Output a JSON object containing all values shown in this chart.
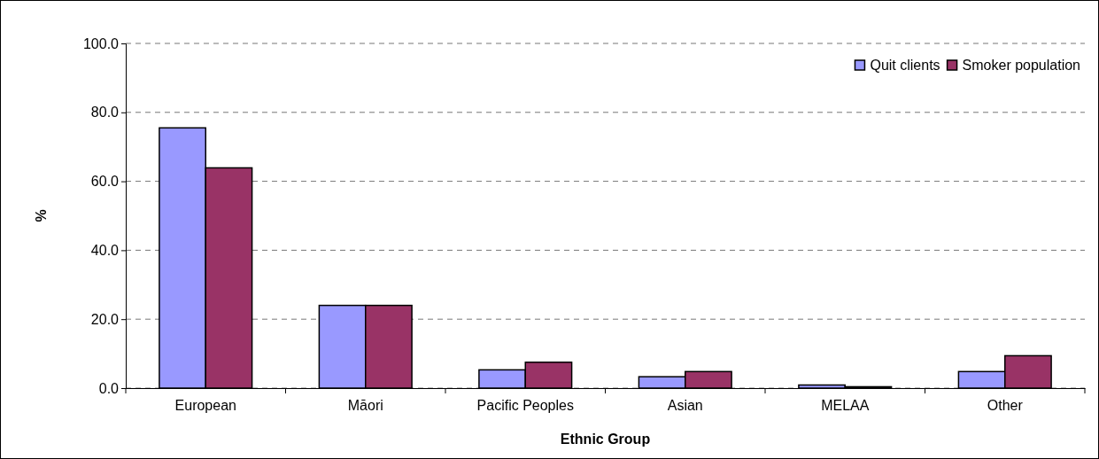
{
  "chart_data": {
    "type": "bar",
    "xlabel": "Ethnic Group",
    "ylabel": "%",
    "categories": [
      "European",
      "Māori",
      "Pacific Peoples",
      "Asian",
      "MELAA",
      "Other"
    ],
    "series": [
      {
        "name": "Quit clients",
        "color": "#9999ff",
        "values": [
          75.5,
          24.0,
          5.3,
          3.3,
          0.9,
          4.8
        ]
      },
      {
        "name": "Smoker population",
        "color": "#993366",
        "values": [
          63.9,
          24.0,
          7.5,
          4.8,
          0.4,
          9.4
        ]
      }
    ],
    "ylim": [
      0,
      100
    ],
    "yticks": [
      {
        "value": 0,
        "label": "0.0"
      },
      {
        "value": 20,
        "label": "20.0"
      },
      {
        "value": 40,
        "label": "40.0"
      },
      {
        "value": 60,
        "label": "60.0"
      },
      {
        "value": 80,
        "label": "80.0"
      },
      {
        "value": 100,
        "label": "100.0"
      }
    ],
    "grid": "y",
    "legend": "top right"
  }
}
